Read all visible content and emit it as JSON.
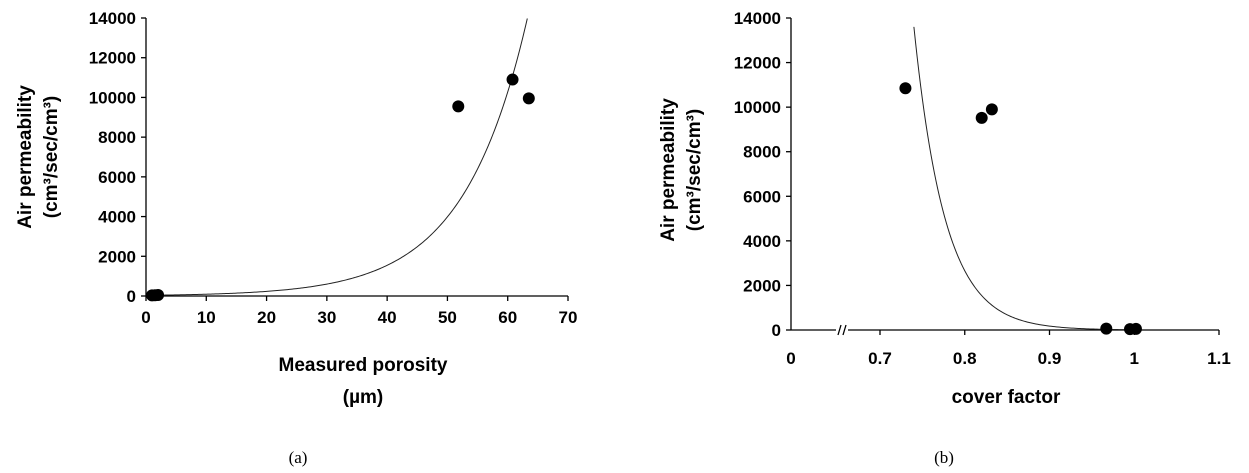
{
  "chart_data": [
    {
      "type": "scatter",
      "caption": "(a)",
      "xlabel_lines": [
        "Measured porosity",
        "(µm)"
      ],
      "ylabel_lines": [
        "Air permeability",
        "(cm³/sec/cm³)"
      ],
      "xlim": [
        0,
        70
      ],
      "ylim": [
        0,
        14000
      ],
      "x_ticks": [
        "0",
        "10",
        "20",
        "30",
        "40",
        "50",
        "60",
        "70"
      ],
      "y_ticks": [
        "0",
        "2000",
        "4000",
        "6000",
        "8000",
        "10000",
        "12000",
        "14000"
      ],
      "series": [
        {
          "points": [
            {
              "x": 1.0,
              "y": 30
            },
            {
              "x": 1.5,
              "y": 40
            },
            {
              "x": 2.0,
              "y": 50
            },
            {
              "x": 51.8,
              "y": 9550
            },
            {
              "x": 60.8,
              "y": 10900
            },
            {
              "x": 63.5,
              "y": 9950
            }
          ]
        }
      ],
      "trendline": {
        "type": "exponential",
        "a": 35,
        "b": 0.0947
      }
    },
    {
      "type": "scatter",
      "caption": "(b)",
      "xlabel_lines": [
        "cover factor"
      ],
      "ylabel_lines": [
        "Air permeability",
        "(cm³/sec/cm³)"
      ],
      "xlim": [
        0.6,
        1.1
      ],
      "x_axis_break": true,
      "ylim": [
        0,
        14000
      ],
      "x_ticks": [
        "0",
        "0.7",
        "0.8",
        "0.9",
        "1",
        "1.1"
      ],
      "y_ticks": [
        "0",
        "2000",
        "4000",
        "6000",
        "8000",
        "10000",
        "12000",
        "14000"
      ],
      "series": [
        {
          "points": [
            {
              "x": 0.73,
              "y": 10850
            },
            {
              "x": 0.82,
              "y": 9520
            },
            {
              "x": 0.832,
              "y": 9900
            },
            {
              "x": 0.967,
              "y": 60
            },
            {
              "x": 0.995,
              "y": 40
            },
            {
              "x": 1.002,
              "y": 50
            }
          ]
        }
      ],
      "trendline": {
        "type": "exponential",
        "a": 7500000000000.0,
        "b": -27.2
      }
    }
  ]
}
